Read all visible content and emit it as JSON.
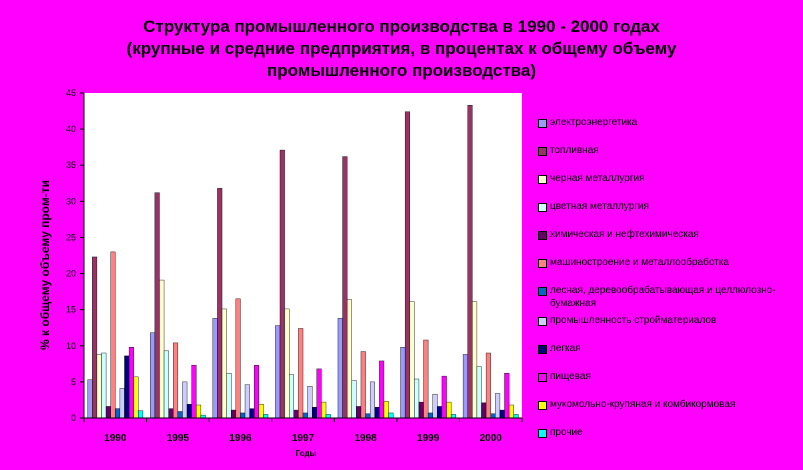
{
  "title_lines": [
    "Структура промышленного производства в 1990 - 2000 годах",
    "(крупные и средние предприятия, в процентах  к общему объему",
    "промышленного производства)"
  ],
  "chart_data": {
    "type": "bar",
    "categories": [
      "1990",
      "1995",
      "1996",
      "1997",
      "1998",
      "1999",
      "2000"
    ],
    "xlabel": "Годы",
    "ylabel": "% к общему объему пром-ти",
    "ylim": [
      0,
      45
    ],
    "yticks": [
      0,
      5,
      10,
      15,
      20,
      25,
      30,
      35,
      40,
      45
    ],
    "grid": false,
    "legend_position": "right",
    "plot_background": "#ffffff",
    "series": [
      {
        "name": "электроэнергетика",
        "color": "#9999ff",
        "values": [
          5.3,
          11.8,
          13.8,
          12.8,
          13.8,
          9.8,
          8.8
        ]
      },
      {
        "name": "топливная",
        "color": "#993366",
        "values": [
          22.3,
          31.2,
          31.8,
          37.1,
          36.2,
          42.4,
          43.3
        ]
      },
      {
        "name": "черная металлургия",
        "color": "#ffffcc",
        "values": [
          8.8,
          19.1,
          15.1,
          15.1,
          16.4,
          16.1,
          16.1
        ]
      },
      {
        "name": "цветная металлургия",
        "color": "#ccffff",
        "values": [
          9.0,
          9.3,
          6.2,
          6.0,
          5.2,
          5.4,
          7.1
        ]
      },
      {
        "name": "химическая и нефтехимическая",
        "color": "#660066",
        "values": [
          1.6,
          1.3,
          1.1,
          1.1,
          1.6,
          2.2,
          2.1
        ]
      },
      {
        "name": "машиностроение и металлообработка",
        "color": "#ff8080",
        "values": [
          23.0,
          10.4,
          16.5,
          12.4,
          9.2,
          10.8,
          9.0
        ]
      },
      {
        "name": "лесная, деревообрабатывающая и целлюлозно-бумажная",
        "color": "#0066cc",
        "values": [
          1.3,
          0.9,
          0.7,
          0.7,
          0.6,
          0.7,
          0.6
        ]
      },
      {
        "name": "промышленность стройматериалов",
        "color": "#ccccff",
        "values": [
          4.1,
          5.0,
          4.6,
          4.4,
          5.0,
          3.3,
          3.4
        ]
      },
      {
        "name": "легкая",
        "color": "#000080",
        "values": [
          8.6,
          1.9,
          1.3,
          1.5,
          1.5,
          1.6,
          1.1
        ]
      },
      {
        "name": "пищевая",
        "color": "#ff00ff",
        "values": [
          9.8,
          7.3,
          7.3,
          6.8,
          7.9,
          5.8,
          6.2
        ]
      },
      {
        "name": "мукомольно-крупяная и комбикормовая",
        "color": "#ffff00",
        "values": [
          5.7,
          1.8,
          1.9,
          2.2,
          2.3,
          2.2,
          1.8
        ]
      },
      {
        "name": "прочие",
        "color": "#00ffff",
        "values": [
          1.0,
          0.4,
          0.5,
          0.5,
          0.7,
          0.5,
          0.5
        ]
      }
    ]
  }
}
